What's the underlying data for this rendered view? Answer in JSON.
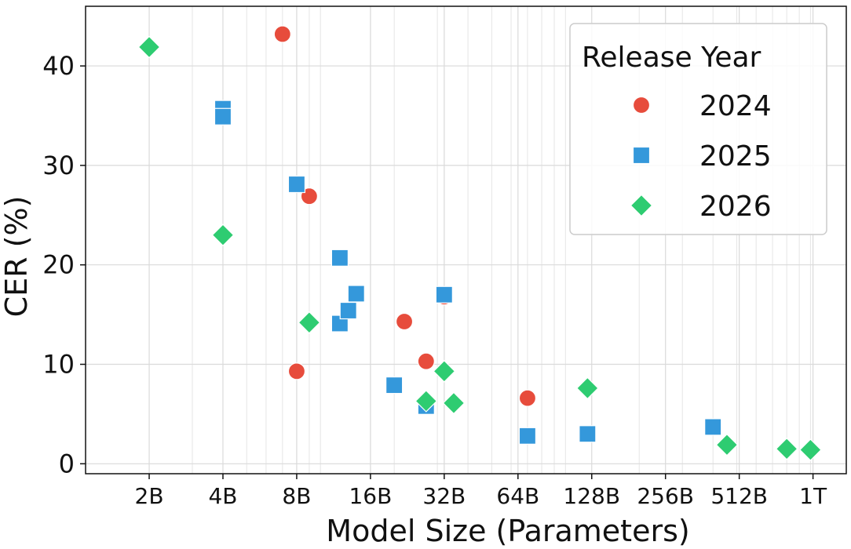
{
  "chart_data": {
    "type": "scatter",
    "xlabel": "Model Size (Parameters)",
    "ylabel": "CER (%)",
    "x_scale": "log2",
    "xlim_params_billion": [
      1.1,
      1400
    ],
    "ylim": [
      -1,
      46
    ],
    "grid": true,
    "legend": {
      "title": "Release Year",
      "placement": "top-right"
    },
    "x_ticks": [
      {
        "value": 2,
        "label": "2B"
      },
      {
        "value": 4,
        "label": "4B"
      },
      {
        "value": 8,
        "label": "8B"
      },
      {
        "value": 16,
        "label": "16B"
      },
      {
        "value": 32,
        "label": "32B"
      },
      {
        "value": 64,
        "label": "64B"
      },
      {
        "value": 128,
        "label": "128B"
      },
      {
        "value": 256,
        "label": "256B"
      },
      {
        "value": 512,
        "label": "512B"
      },
      {
        "value": 1024,
        "label": "1T"
      }
    ],
    "y_ticks": [
      {
        "value": 0,
        "label": "0"
      },
      {
        "value": 10,
        "label": "10"
      },
      {
        "value": 20,
        "label": "20"
      },
      {
        "value": 30,
        "label": "30"
      },
      {
        "value": 40,
        "label": "40"
      }
    ],
    "series": [
      {
        "name": "2024",
        "marker": "circle",
        "color": "#e74c3c",
        "points": [
          {
            "x": 7.0,
            "y": 43.2
          },
          {
            "x": 9.0,
            "y": 26.9
          },
          {
            "x": 8.0,
            "y": 9.3
          },
          {
            "x": 22.0,
            "y": 14.3
          },
          {
            "x": 27.0,
            "y": 10.3
          },
          {
            "x": 32.0,
            "y": 16.8
          },
          {
            "x": 70.0,
            "y": 6.6
          }
        ]
      },
      {
        "name": "2025",
        "marker": "square",
        "color": "#3498db",
        "points": [
          {
            "x": 4.0,
            "y": 35.7
          },
          {
            "x": 4.0,
            "y": 34.9
          },
          {
            "x": 8.0,
            "y": 28.1
          },
          {
            "x": 12.0,
            "y": 20.7
          },
          {
            "x": 12.0,
            "y": 14.1
          },
          {
            "x": 13.0,
            "y": 15.4
          },
          {
            "x": 14.0,
            "y": 17.1
          },
          {
            "x": 20.0,
            "y": 7.9
          },
          {
            "x": 27.0,
            "y": 5.8
          },
          {
            "x": 32.0,
            "y": 17.0
          },
          {
            "x": 70.0,
            "y": 2.8
          },
          {
            "x": 123.0,
            "y": 3.0
          },
          {
            "x": 400.0,
            "y": 3.7
          }
        ]
      },
      {
        "name": "2026",
        "marker": "diamond",
        "color": "#2ecc71",
        "points": [
          {
            "x": 2.0,
            "y": 41.9
          },
          {
            "x": 4.0,
            "y": 23.0
          },
          {
            "x": 9.0,
            "y": 14.2
          },
          {
            "x": 27.0,
            "y": 6.3
          },
          {
            "x": 32.0,
            "y": 9.3
          },
          {
            "x": 35.0,
            "y": 6.1
          },
          {
            "x": 123.0,
            "y": 7.6
          },
          {
            "x": 456.0,
            "y": 1.9
          },
          {
            "x": 800.0,
            "y": 1.5
          },
          {
            "x": 1000.0,
            "y": 1.4
          }
        ]
      }
    ]
  }
}
